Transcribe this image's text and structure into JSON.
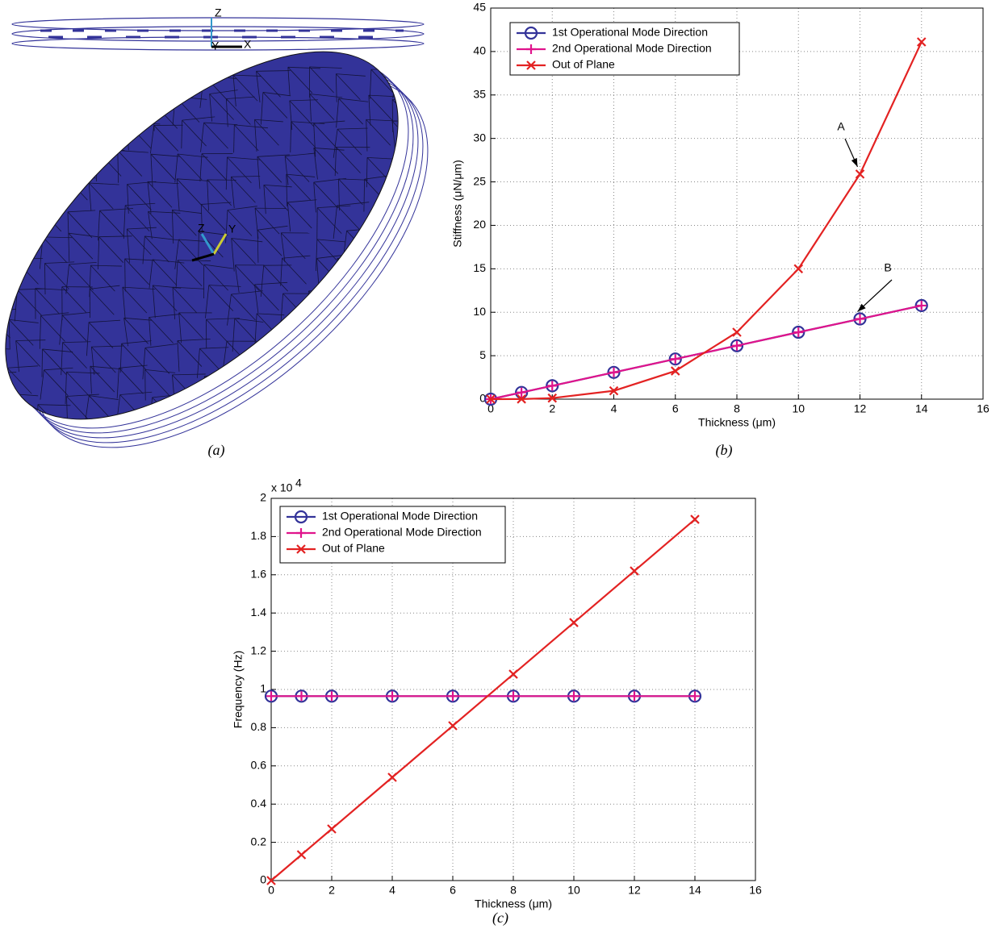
{
  "panel_a": {
    "caption": "(a)",
    "top_triad": [
      "Z",
      "Y",
      "X"
    ],
    "center_triad": [
      "Z",
      "Y"
    ]
  },
  "chart_data": [
    {
      "type": "line",
      "caption": "(b)",
      "x_label": "Thickness (μm)",
      "y_label": "Stiffness (μN/μm)",
      "x": [
        0,
        1,
        2,
        4,
        6,
        8,
        10,
        12,
        14
      ],
      "series": [
        {
          "name": "1st Operational Mode Direction",
          "color": "#333399",
          "marker": "circle",
          "values": [
            0,
            0.77,
            1.54,
            3.08,
            4.62,
            6.15,
            7.7,
            9.23,
            10.77
          ]
        },
        {
          "name": "2nd Operational Mode Direction",
          "color": "#e0148c",
          "marker": "plus",
          "values": [
            0,
            0.77,
            1.54,
            3.08,
            4.62,
            6.15,
            7.7,
            9.23,
            10.77
          ]
        },
        {
          "name": "Out of Plane",
          "color": "#e32222",
          "marker": "x",
          "values": [
            0,
            0.015,
            0.12,
            0.96,
            3.24,
            7.7,
            15.0,
            25.9,
            41.1
          ]
        }
      ],
      "annotations": [
        {
          "text": "A"
        },
        {
          "text": "B"
        }
      ],
      "xlim": [
        0,
        16
      ],
      "xticks": [
        0,
        2,
        4,
        6,
        8,
        10,
        12,
        14,
        16
      ],
      "ylim": [
        0,
        45
      ],
      "yticks": [
        0,
        5,
        10,
        15,
        20,
        25,
        30,
        35,
        40,
        45
      ],
      "grid": true,
      "legend": "upper-left"
    },
    {
      "type": "line",
      "caption": "(c)",
      "x_label": "Thickness (μm)",
      "y_label": "Frequency (Hz)",
      "y_scale_label": {
        "base": "x 10",
        "exponent": "4"
      },
      "x": [
        0,
        1,
        2,
        4,
        6,
        8,
        10,
        12,
        14
      ],
      "series": [
        {
          "name": "1st Operational Mode Direction",
          "color": "#333399",
          "marker": "circle",
          "values": [
            9650,
            9650,
            9650,
            9650,
            9650,
            9650,
            9650,
            9650,
            9650
          ]
        },
        {
          "name": "2nd Operational Mode Direction",
          "color": "#e0148c",
          "marker": "plus",
          "values": [
            9650,
            9650,
            9650,
            9650,
            9650,
            9650,
            9650,
            9650,
            9650
          ]
        },
        {
          "name": "Out of Plane",
          "color": "#e32222",
          "marker": "x",
          "values": [
            0,
            1350,
            2700,
            5400,
            8100,
            10800,
            13500,
            16200,
            18900
          ]
        }
      ],
      "xlim": [
        0,
        16
      ],
      "xticks": [
        0,
        2,
        4,
        6,
        8,
        10,
        12,
        14,
        16
      ],
      "ylim": [
        0,
        20000
      ],
      "yticks": [
        0,
        {
          "value": 2000,
          "label": "0.2"
        },
        {
          "value": 4000,
          "label": "0.4"
        },
        {
          "value": 6000,
          "label": "0.6"
        },
        {
          "value": 8000,
          "label": "0.8"
        },
        {
          "value": 10000,
          "label": "1"
        },
        {
          "value": 12000,
          "label": "1.2"
        },
        {
          "value": 14000,
          "label": "1.4"
        },
        {
          "value": 16000,
          "label": "1.6"
        },
        {
          "value": 18000,
          "label": "1.8"
        },
        {
          "value": 20000,
          "label": "2"
        }
      ],
      "grid": true,
      "legend": "upper-left"
    }
  ]
}
